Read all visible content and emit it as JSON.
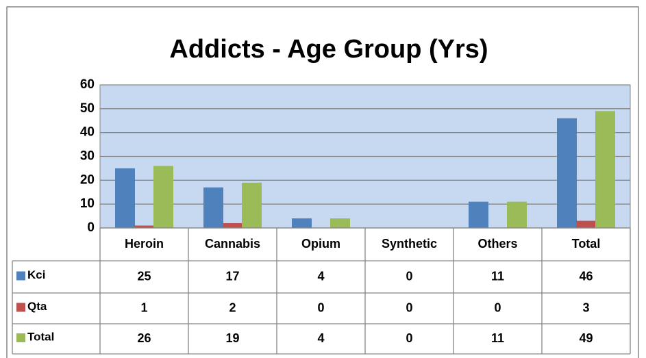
{
  "chart_data": {
    "type": "bar",
    "title": "Addicts - Age Group (Yrs)",
    "categories": [
      "Heroin",
      "Cannabis",
      "Opium",
      "Synthetic",
      "Others",
      "Total"
    ],
    "series": [
      {
        "name": "Kci",
        "color": "#4f81bd",
        "values": [
          25,
          17,
          4,
          0,
          11,
          46
        ]
      },
      {
        "name": "Qta",
        "color": "#c0504d",
        "values": [
          1,
          2,
          0,
          0,
          0,
          3
        ]
      },
      {
        "name": "Total",
        "color": "#9bbb59",
        "values": [
          26,
          19,
          4,
          0,
          11,
          49
        ]
      }
    ],
    "ylim": [
      0,
      60
    ],
    "yticks": [
      0,
      10,
      20,
      30,
      40,
      50,
      60
    ],
    "grid": true,
    "plot_background": "#c6d9f1"
  }
}
